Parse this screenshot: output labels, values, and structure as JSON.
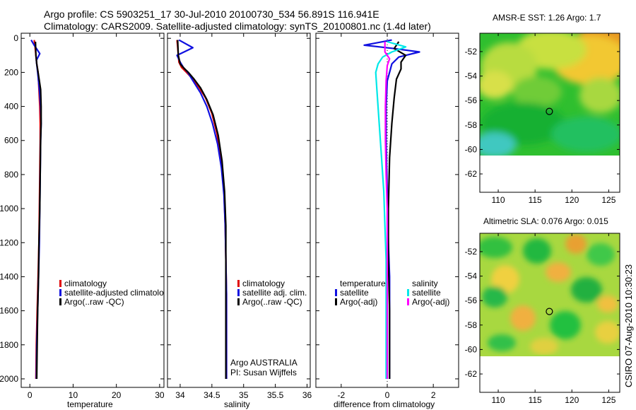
{
  "figure": {
    "title_line1": "Argo profile: CS 5903251_17 30-Jul-2010 20100730_534 56.891S 116.941E",
    "title_line2": "Climatology: CARS2009. Satellite-adjusted climatology: synTS_20100801.nc (1.4d later)",
    "side_label": "CSIRO 07-Aug-2010 10:30:23"
  },
  "colors": {
    "climatology": "#e00000",
    "satellite": "#1010e0",
    "argo": "#000000",
    "sal_satellite": "#00e8e8",
    "sal_argo": "#ff00ff"
  },
  "chart_data": [
    {
      "type": "line",
      "id": "temperature",
      "xlabel": "temperature",
      "ylabel": "",
      "xlim": [
        -2,
        31
      ],
      "ylim": [
        2050,
        -30
      ],
      "xticks": [
        0,
        10,
        20,
        30
      ],
      "yticks": [
        0,
        200,
        400,
        600,
        800,
        1000,
        1200,
        1400,
        1600,
        1800,
        2000
      ],
      "legend": [
        "climatology",
        "satellite-adjusted climatology",
        "Argo(..raw -QC)"
      ],
      "series": [
        {
          "name": "climatology",
          "color": "#e00000",
          "x": [
            1.0,
            1.2,
            1.4,
            1.6,
            1.9,
            2.1,
            2.3,
            2.4,
            2.4,
            2.3,
            2.2,
            2.1,
            2.0,
            1.9,
            1.8,
            1.7,
            1.6,
            1.5,
            1.4
          ],
          "y": [
            10,
            50,
            100,
            150,
            200,
            300,
            400,
            500,
            600,
            800,
            1000,
            1200,
            1300,
            1400,
            1500,
            1600,
            1700,
            1800,
            2000
          ]
        },
        {
          "name": "satellite-adjusted climatology",
          "color": "#1010e0",
          "x": [
            0.3,
            1.0,
            2.3,
            1.5,
            1.8,
            2.2,
            2.5,
            2.6,
            2.5,
            2.4,
            2.3,
            2.2,
            2.1,
            2.0,
            1.9,
            1.8,
            1.7,
            1.6,
            1.5
          ],
          "y": [
            10,
            40,
            90,
            130,
            200,
            300,
            400,
            500,
            600,
            800,
            1000,
            1200,
            1300,
            1400,
            1500,
            1600,
            1700,
            1800,
            2000
          ]
        },
        {
          "name": "Argo(..raw -QC)",
          "color": "#000000",
          "x": [
            1.3,
            1.4,
            1.6,
            1.9,
            2.2,
            2.5,
            2.6,
            2.6,
            2.5,
            2.4,
            2.3,
            2.1,
            2.0,
            1.9,
            1.8,
            1.7,
            1.6
          ],
          "y": [
            20,
            100,
            150,
            200,
            250,
            300,
            400,
            500,
            600,
            800,
            1000,
            1200,
            1400,
            1500,
            1600,
            1800,
            2000
          ]
        }
      ]
    },
    {
      "type": "line",
      "id": "salinity",
      "xlabel": "salinity",
      "ylabel": "",
      "xlim": [
        33.8,
        36.05
      ],
      "ylim": [
        2050,
        -30
      ],
      "xticks": [
        34,
        34.5,
        35,
        35.5,
        36
      ],
      "xtick_labels": [
        "34",
        "34.5",
        "35",
        "35.5",
        "36"
      ],
      "yticks": [
        0,
        200,
        400,
        600,
        800,
        1000,
        1200,
        1400,
        1600,
        1800,
        2000
      ],
      "legend": [
        "climatology",
        "satellite adj. clim.",
        "Argo(..raw -QC)"
      ],
      "annotation_line1": "Argo AUSTRALIA",
      "annotation_line2": "PI: Susan Wijffels",
      "series": [
        {
          "name": "climatology",
          "color": "#e00000",
          "x": [
            33.95,
            33.96,
            33.97,
            33.98,
            34.02,
            34.1,
            34.2,
            34.3,
            34.4,
            34.5,
            34.58,
            34.65,
            34.69,
            34.71,
            34.72,
            34.73,
            34.73,
            34.73
          ],
          "y": [
            10,
            50,
            100,
            140,
            170,
            200,
            240,
            290,
            350,
            440,
            560,
            720,
            900,
            1100,
            1300,
            1500,
            1800,
            2000
          ]
        },
        {
          "name": "satellite adj. clim.",
          "color": "#1010e0",
          "x": [
            33.98,
            34.2,
            33.95,
            34.0,
            34.05,
            34.12,
            34.22,
            34.32,
            34.42,
            34.51,
            34.59,
            34.65,
            34.69,
            34.71,
            34.72,
            34.73,
            34.73,
            34.73
          ],
          "y": [
            10,
            55,
            100,
            140,
            170,
            200,
            260,
            320,
            400,
            500,
            620,
            760,
            920,
            1100,
            1300,
            1500,
            1800,
            2000
          ]
        },
        {
          "name": "Argo(..raw -QC)",
          "color": "#000000",
          "x": [
            33.96,
            33.97,
            34.0,
            34.06,
            34.13,
            34.22,
            34.32,
            34.42,
            34.52,
            34.6,
            34.66,
            34.7,
            34.72,
            34.72,
            34.72
          ],
          "y": [
            10,
            100,
            150,
            175,
            200,
            240,
            290,
            360,
            450,
            570,
            720,
            900,
            1100,
            1500,
            2000
          ]
        }
      ]
    },
    {
      "type": "line",
      "id": "difference",
      "xlabel": "difference from climatology",
      "ylabel": "",
      "xlim": [
        -3.1,
        3.1
      ],
      "ylim": [
        2050,
        -30
      ],
      "xticks": [
        -2,
        0,
        2
      ],
      "yticks": [
        0,
        200,
        400,
        600,
        800,
        1000,
        1200,
        1400,
        1600,
        1800,
        2000
      ],
      "legend_temperature_title": "temperature",
      "legend_salinity_title": "salinity",
      "legend_temperature": [
        "satellite",
        "Argo(-adj)"
      ],
      "legend_salinity": [
        "satellite",
        "Argo(-adj)"
      ],
      "series": [
        {
          "name": "temperature satellite",
          "color": "#1010e0",
          "x": [
            0.2,
            -1.0,
            0.3,
            1.4,
            0.5,
            0.2,
            0.0,
            -0.05,
            -0.05,
            0.0,
            0.05,
            0.1,
            0.1,
            0.1,
            0.1,
            0.1
          ],
          "y": [
            10,
            40,
            60,
            80,
            110,
            150,
            250,
            400,
            600,
            900,
            1200,
            1400,
            1600,
            1800,
            1900,
            2000
          ]
        },
        {
          "name": "temperature Argo(-adj)",
          "color": "#000000",
          "x": [
            0.5,
            0.3,
            0.8,
            0.6,
            0.6,
            0.4,
            0.3,
            0.2,
            0.1,
            0.05,
            0.05,
            0.1,
            0.1,
            0.1
          ],
          "y": [
            20,
            60,
            100,
            140,
            180,
            240,
            350,
            500,
            700,
            1000,
            1300,
            1600,
            1800,
            2000
          ]
        },
        {
          "name": "salinity satellite",
          "color": "#00e8e8",
          "x": [
            0.0,
            0.8,
            0.2,
            -0.2,
            -0.4,
            -0.5,
            -0.45,
            -0.35,
            -0.25,
            -0.15,
            -0.1,
            -0.05,
            -0.05,
            -0.05
          ],
          "y": [
            20,
            50,
            80,
            110,
            150,
            200,
            300,
            500,
            700,
            900,
            1100,
            1300,
            1600,
            2000
          ]
        },
        {
          "name": "salinity Argo(-adj)",
          "color": "#ff00ff",
          "x": [
            -0.1,
            -0.1,
            0.1,
            0.0,
            -0.05,
            -0.08,
            -0.08,
            -0.05,
            0.0,
            0.0,
            0.0
          ],
          "y": [
            20,
            80,
            120,
            160,
            250,
            400,
            600,
            800,
            1000,
            1500,
            2000
          ]
        }
      ]
    },
    {
      "type": "heatmap",
      "id": "sst_map",
      "title": "AMSR-E SST: 1.26 Argo: 1.7",
      "xlim": [
        107.5,
        126.5
      ],
      "ylim": [
        -63.5,
        -50.5
      ],
      "xticks": [
        110,
        115,
        120,
        125
      ],
      "yticks": [
        -52,
        -54,
        -56,
        -58,
        -60,
        -62
      ],
      "data_extent_lat": [
        -60,
        -50.5
      ],
      "marker": {
        "lon": 116.941,
        "lat": -56.891
      }
    },
    {
      "type": "heatmap",
      "id": "sla_map",
      "title": "Altimetric SLA: 0.076 Argo: 0.015",
      "xlim": [
        107.5,
        126.5
      ],
      "ylim": [
        -63.5,
        -50.5
      ],
      "xticks": [
        110,
        115,
        120,
        125
      ],
      "yticks": [
        -52,
        -54,
        -56,
        -58,
        -60,
        -62
      ],
      "data_extent_lat": [
        -60,
        -50.5
      ],
      "marker": {
        "lon": 116.941,
        "lat": -56.891
      }
    }
  ]
}
